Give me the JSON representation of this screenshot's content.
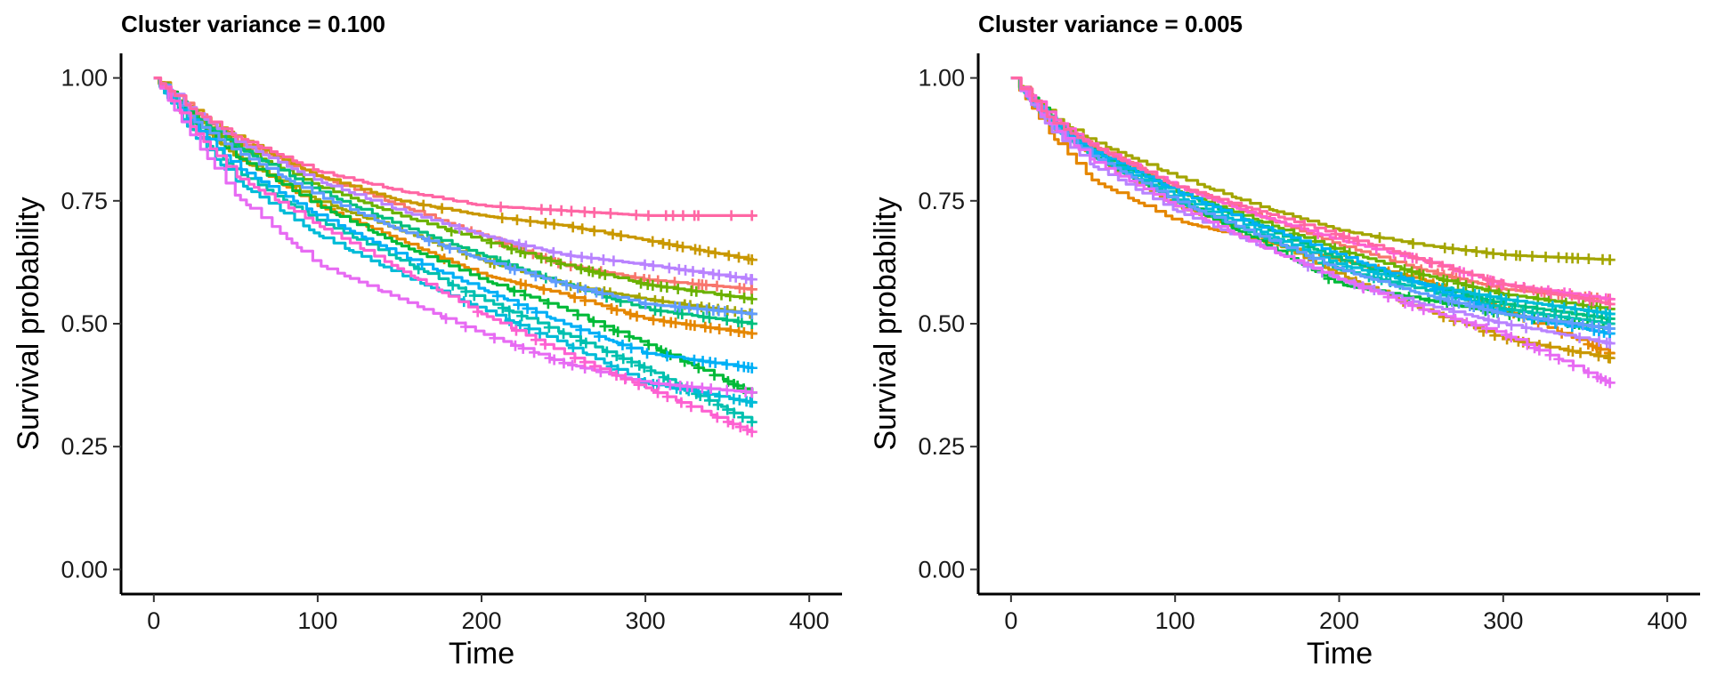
{
  "chart_data": [
    {
      "type": "line",
      "title": "Cluster variance = 0.100",
      "xlabel": "Time",
      "ylabel": "Survival probability",
      "xlim": [
        -20,
        420
      ],
      "ylim": [
        -0.05,
        1.05
      ],
      "xticks": [
        "0",
        "100",
        "200",
        "300",
        "400"
      ],
      "yticks": [
        "0.00",
        "0.25",
        "0.50",
        "0.75",
        "1.00"
      ],
      "grid": false,
      "legend": "none",
      "series": [
        {
          "color": "#F8766D",
          "x": [
            0,
            25,
            50,
            100,
            150,
            200,
            250,
            300,
            365
          ],
          "values": [
            1.0,
            0.93,
            0.87,
            0.8,
            0.74,
            0.68,
            0.62,
            0.59,
            0.57
          ]
        },
        {
          "color": "#E58700",
          "x": [
            0,
            25,
            50,
            100,
            150,
            200,
            250,
            300,
            365
          ],
          "values": [
            1.0,
            0.91,
            0.84,
            0.74,
            0.67,
            0.6,
            0.56,
            0.51,
            0.48
          ]
        },
        {
          "color": "#C99800",
          "x": [
            0,
            25,
            50,
            100,
            150,
            200,
            250,
            300,
            365
          ],
          "values": [
            1.0,
            0.93,
            0.88,
            0.8,
            0.75,
            0.72,
            0.7,
            0.67,
            0.63
          ]
        },
        {
          "color": "#A3A500",
          "x": [
            0,
            25,
            50,
            100,
            150,
            200,
            250,
            300,
            365
          ],
          "values": [
            1.0,
            0.91,
            0.84,
            0.75,
            0.69,
            0.63,
            0.58,
            0.55,
            0.52
          ]
        },
        {
          "color": "#6BB100",
          "x": [
            0,
            25,
            50,
            100,
            150,
            200,
            250,
            300,
            365
          ],
          "values": [
            1.0,
            0.92,
            0.86,
            0.78,
            0.72,
            0.67,
            0.62,
            0.58,
            0.55
          ]
        },
        {
          "color": "#00BA38",
          "x": [
            0,
            25,
            50,
            100,
            150,
            200,
            250,
            300,
            365
          ],
          "values": [
            1.0,
            0.91,
            0.84,
            0.74,
            0.66,
            0.59,
            0.53,
            0.46,
            0.36
          ]
        },
        {
          "color": "#00BF7D",
          "x": [
            0,
            25,
            50,
            100,
            150,
            200,
            250,
            300,
            365
          ],
          "values": [
            1.0,
            0.92,
            0.86,
            0.77,
            0.7,
            0.64,
            0.58,
            0.53,
            0.5
          ]
        },
        {
          "color": "#00C0AF",
          "x": [
            0,
            25,
            50,
            100,
            150,
            200,
            250,
            300,
            365
          ],
          "values": [
            1.0,
            0.89,
            0.81,
            0.71,
            0.63,
            0.55,
            0.48,
            0.41,
            0.3
          ]
        },
        {
          "color": "#00BCD8",
          "x": [
            0,
            25,
            50,
            100,
            150,
            200,
            250,
            300,
            365
          ],
          "values": [
            1.0,
            0.88,
            0.79,
            0.68,
            0.6,
            0.53,
            0.46,
            0.38,
            0.34
          ]
        },
        {
          "color": "#00B0F6",
          "x": [
            0,
            25,
            50,
            100,
            150,
            200,
            250,
            300,
            365
          ],
          "values": [
            1.0,
            0.9,
            0.82,
            0.72,
            0.64,
            0.57,
            0.5,
            0.44,
            0.41
          ]
        },
        {
          "color": "#619CFF",
          "x": [
            0,
            25,
            50,
            100,
            150,
            200,
            250,
            300,
            365
          ],
          "values": [
            1.0,
            0.91,
            0.85,
            0.76,
            0.69,
            0.63,
            0.58,
            0.54,
            0.52
          ]
        },
        {
          "color": "#B983FF",
          "x": [
            0,
            25,
            50,
            100,
            150,
            200,
            250,
            300,
            365
          ],
          "values": [
            1.0,
            0.93,
            0.87,
            0.79,
            0.73,
            0.68,
            0.64,
            0.62,
            0.59
          ]
        },
        {
          "color": "#E76BF3",
          "x": [
            0,
            25,
            50,
            100,
            150,
            200,
            250,
            300,
            365
          ],
          "values": [
            1.0,
            0.87,
            0.76,
            0.62,
            0.55,
            0.48,
            0.42,
            0.38,
            0.36
          ]
        },
        {
          "color": "#FD61D1",
          "x": [
            0,
            25,
            50,
            100,
            150,
            200,
            250,
            300,
            365
          ],
          "values": [
            1.0,
            0.89,
            0.8,
            0.7,
            0.61,
            0.52,
            0.44,
            0.37,
            0.28
          ]
        },
        {
          "color": "#FF67A4",
          "x": [
            0,
            25,
            50,
            100,
            150,
            200,
            250,
            300,
            365
          ],
          "values": [
            1.0,
            0.93,
            0.88,
            0.81,
            0.77,
            0.74,
            0.73,
            0.72,
            0.72
          ]
        }
      ]
    },
    {
      "type": "line",
      "title": "Cluster variance = 0.005",
      "xlabel": "Time",
      "ylabel": "Survival probability",
      "xlim": [
        -20,
        420
      ],
      "ylim": [
        -0.05,
        1.05
      ],
      "xticks": [
        "0",
        "100",
        "200",
        "300",
        "400"
      ],
      "yticks": [
        "0.00",
        "0.25",
        "0.50",
        "0.75",
        "1.00"
      ],
      "grid": false,
      "legend": "none",
      "series": [
        {
          "color": "#F8766D",
          "x": [
            0,
            25,
            50,
            100,
            150,
            200,
            250,
            300,
            365
          ],
          "values": [
            1.0,
            0.91,
            0.86,
            0.78,
            0.72,
            0.66,
            0.61,
            0.57,
            0.55
          ]
        },
        {
          "color": "#E58700",
          "x": [
            0,
            25,
            50,
            100,
            150,
            200,
            250,
            300,
            365
          ],
          "values": [
            1.0,
            0.88,
            0.79,
            0.71,
            0.67,
            0.63,
            0.59,
            0.53,
            0.44
          ]
        },
        {
          "color": "#C99800",
          "x": [
            0,
            25,
            50,
            100,
            150,
            200,
            250,
            300,
            365
          ],
          "values": [
            1.0,
            0.9,
            0.84,
            0.74,
            0.68,
            0.6,
            0.53,
            0.47,
            0.43
          ]
        },
        {
          "color": "#A3A500",
          "x": [
            0,
            25,
            50,
            100,
            150,
            200,
            250,
            300,
            365
          ],
          "values": [
            1.0,
            0.92,
            0.87,
            0.8,
            0.74,
            0.69,
            0.66,
            0.64,
            0.63
          ]
        },
        {
          "color": "#6BB100",
          "x": [
            0,
            25,
            50,
            100,
            150,
            200,
            250,
            300,
            365
          ],
          "values": [
            1.0,
            0.91,
            0.85,
            0.77,
            0.71,
            0.65,
            0.6,
            0.56,
            0.53
          ]
        },
        {
          "color": "#00BA38",
          "x": [
            0,
            25,
            50,
            100,
            150,
            200,
            250,
            300,
            365
          ],
          "values": [
            1.0,
            0.91,
            0.84,
            0.75,
            0.67,
            0.58,
            0.55,
            0.52,
            0.49
          ]
        },
        {
          "color": "#00BF7D",
          "x": [
            0,
            25,
            50,
            100,
            150,
            200,
            250,
            300,
            365
          ],
          "values": [
            1.0,
            0.91,
            0.85,
            0.77,
            0.7,
            0.63,
            0.58,
            0.54,
            0.51
          ]
        },
        {
          "color": "#00C0AF",
          "x": [
            0,
            25,
            50,
            100,
            150,
            200,
            250,
            300,
            365
          ],
          "values": [
            1.0,
            0.9,
            0.84,
            0.75,
            0.68,
            0.61,
            0.57,
            0.53,
            0.5
          ]
        },
        {
          "color": "#00BCD8",
          "x": [
            0,
            25,
            50,
            100,
            150,
            200,
            250,
            300,
            365
          ],
          "values": [
            1.0,
            0.9,
            0.84,
            0.76,
            0.69,
            0.62,
            0.58,
            0.55,
            0.52
          ]
        },
        {
          "color": "#00B0F6",
          "x": [
            0,
            25,
            50,
            100,
            150,
            200,
            250,
            300,
            365
          ],
          "values": [
            1.0,
            0.91,
            0.85,
            0.77,
            0.7,
            0.64,
            0.58,
            0.52,
            0.48
          ]
        },
        {
          "color": "#619CFF",
          "x": [
            0,
            25,
            50,
            100,
            150,
            200,
            250,
            300,
            365
          ],
          "values": [
            1.0,
            0.9,
            0.84,
            0.75,
            0.68,
            0.61,
            0.56,
            0.52,
            0.49
          ]
        },
        {
          "color": "#B983FF",
          "x": [
            0,
            25,
            50,
            100,
            150,
            200,
            250,
            300,
            365
          ],
          "values": [
            1.0,
            0.89,
            0.82,
            0.73,
            0.66,
            0.59,
            0.54,
            0.5,
            0.46
          ]
        },
        {
          "color": "#E76BF3",
          "x": [
            0,
            25,
            50,
            100,
            150,
            200,
            250,
            300,
            365
          ],
          "values": [
            1.0,
            0.9,
            0.83,
            0.74,
            0.66,
            0.59,
            0.53,
            0.48,
            0.38
          ]
        },
        {
          "color": "#FD61D1",
          "x": [
            0,
            25,
            50,
            100,
            150,
            200,
            250,
            300,
            365
          ],
          "values": [
            1.0,
            0.92,
            0.86,
            0.78,
            0.72,
            0.67,
            0.63,
            0.58,
            0.55
          ]
        },
        {
          "color": "#FF67A4",
          "x": [
            0,
            25,
            50,
            100,
            150,
            200,
            250,
            300,
            365
          ],
          "values": [
            1.0,
            0.91,
            0.86,
            0.78,
            0.73,
            0.68,
            0.63,
            0.58,
            0.54
          ]
        }
      ]
    }
  ]
}
